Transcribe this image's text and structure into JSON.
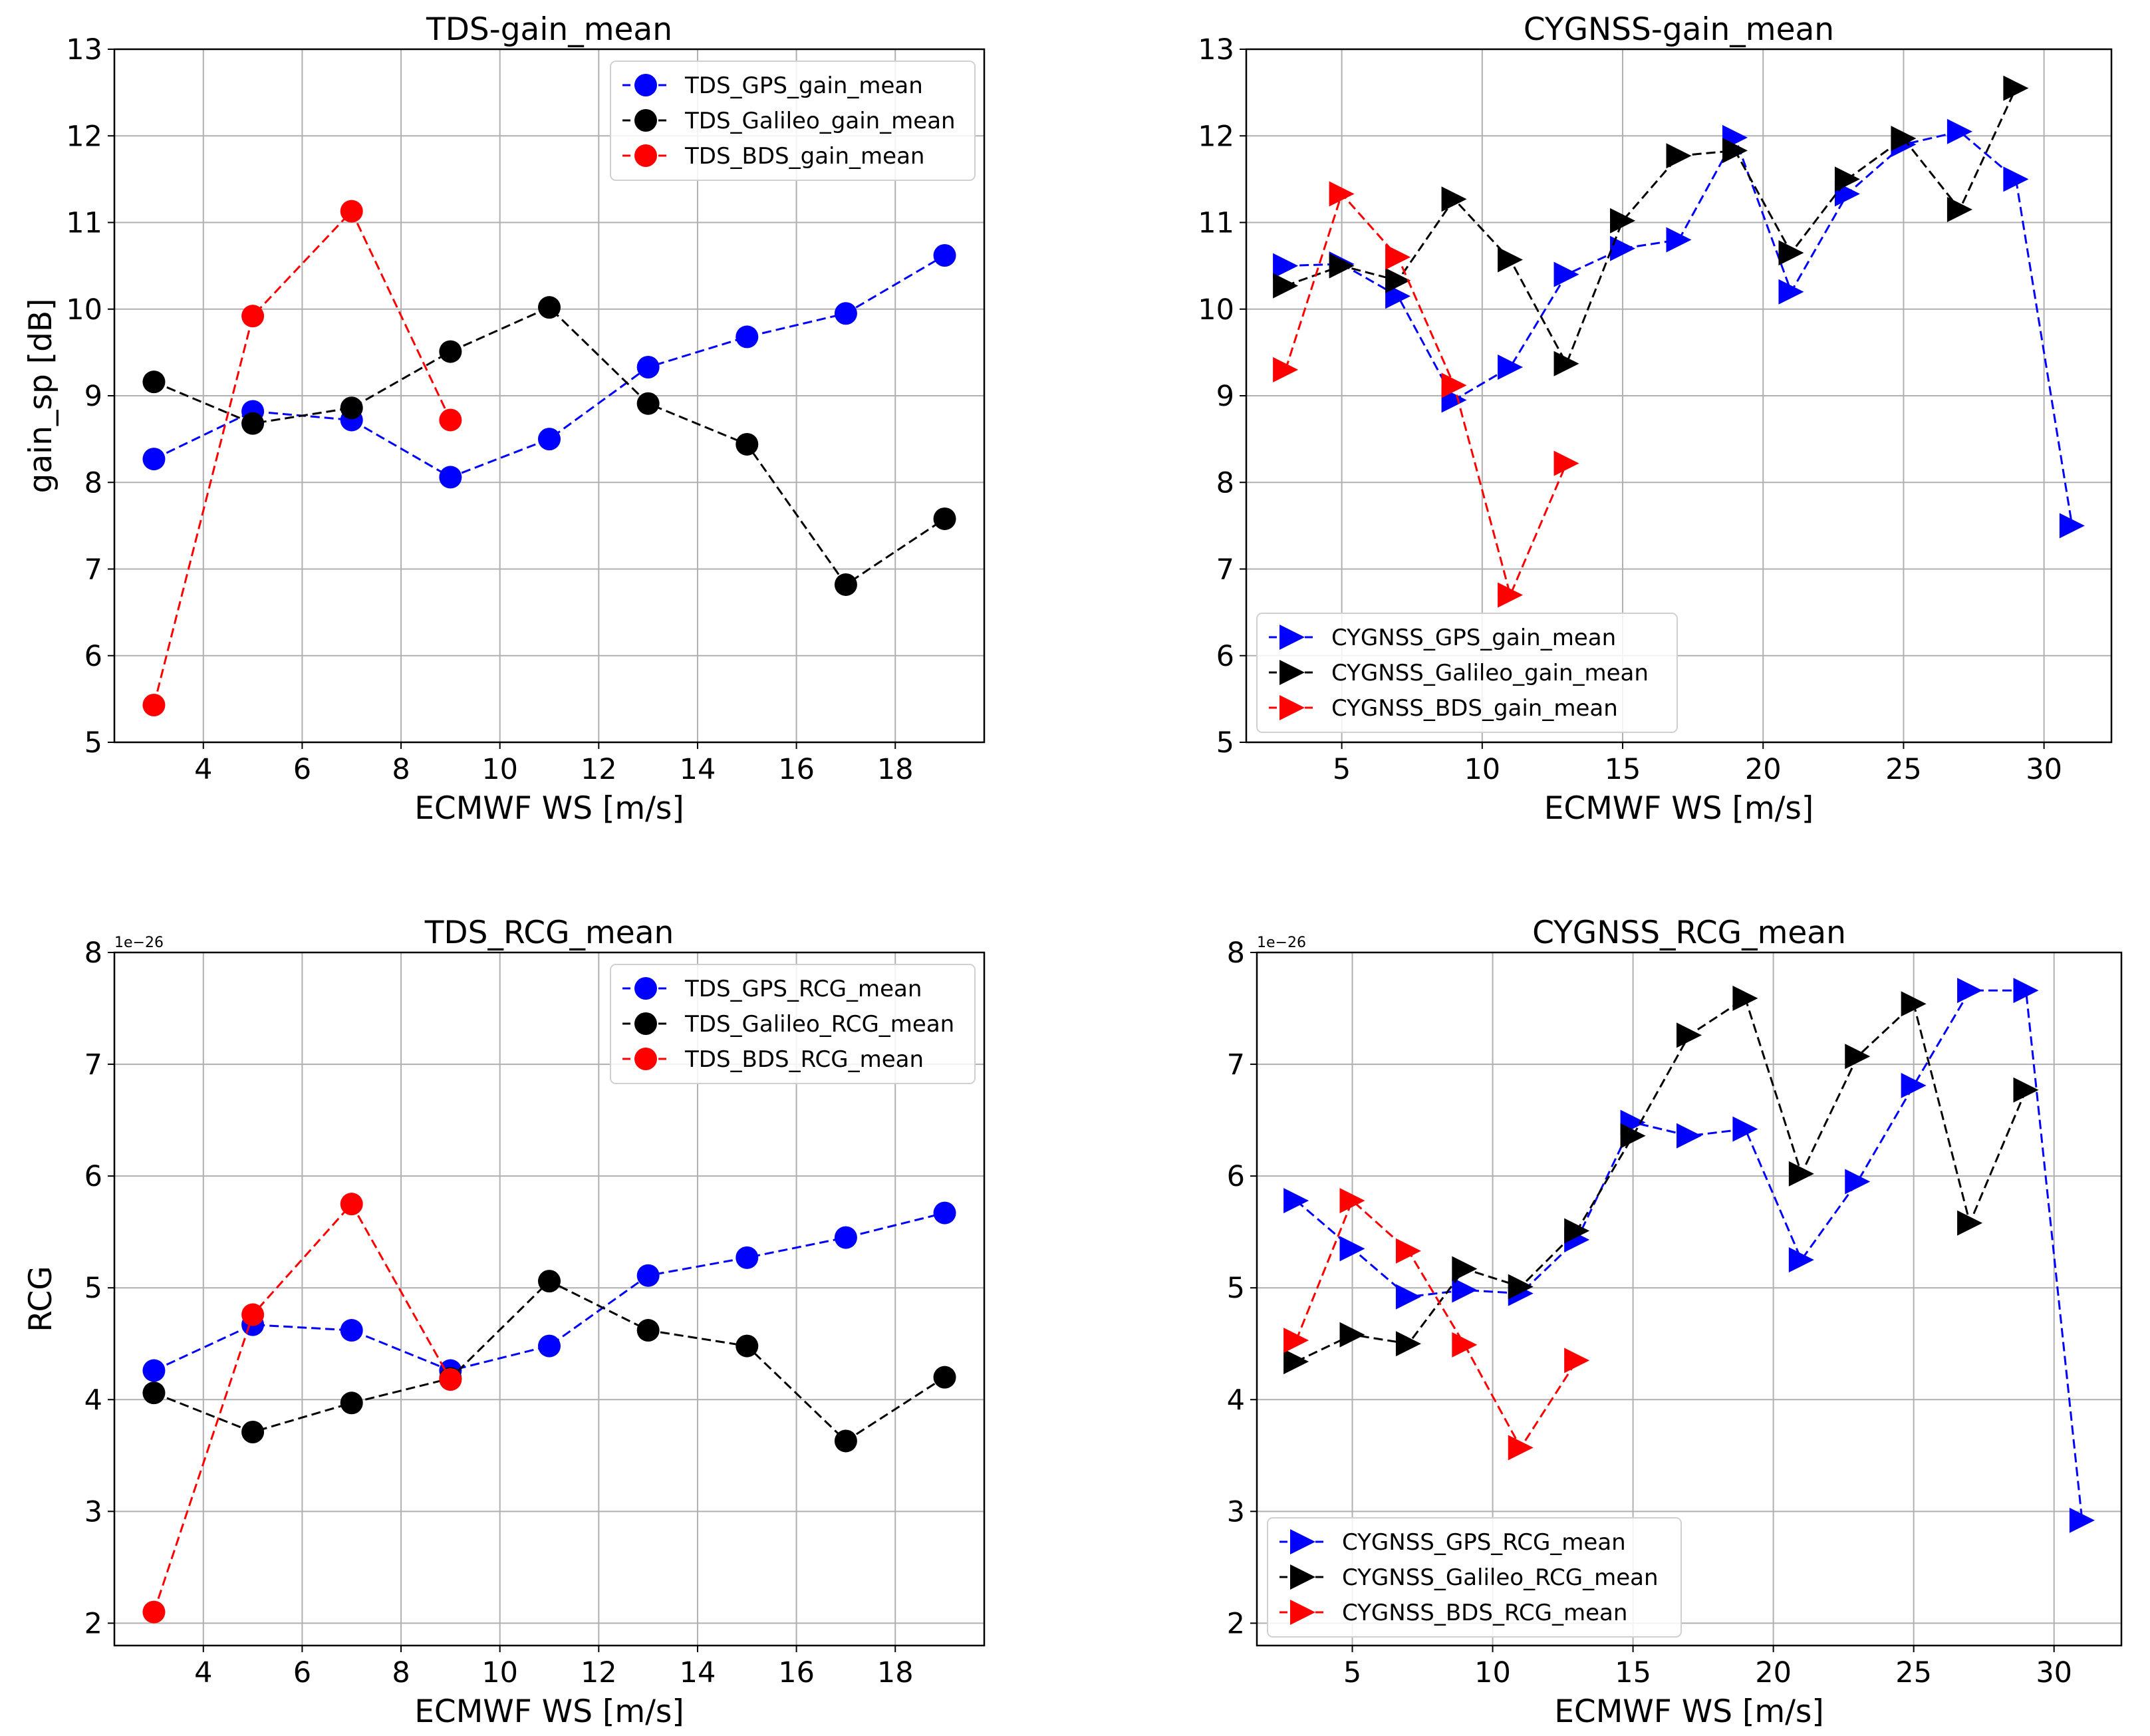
{
  "chart_data": [
    {
      "id": "tds_gain",
      "type": "line",
      "title": "TDS-gain_mean",
      "xlabel": "ECMWF WS [m/s]",
      "ylabel": "gain_sp [dB]",
      "xlim": [
        2.2,
        19.8
      ],
      "ylim": [
        5,
        13
      ],
      "xticks": [
        4,
        6,
        8,
        10,
        12,
        14,
        16,
        18
      ],
      "yticks": [
        5,
        6,
        7,
        8,
        9,
        10,
        11,
        12,
        13
      ],
      "ytick_labels": [
        "5",
        "6",
        "7",
        "8",
        "9",
        "10",
        "11",
        "12",
        "13"
      ],
      "offset_text": "",
      "legend": "top-right",
      "marker": "circle",
      "series": [
        {
          "name": "TDS_GPS_gain_mean",
          "color": "#0000ff",
          "x": [
            3,
            5,
            7,
            9,
            11,
            13,
            15,
            17,
            19
          ],
          "y": [
            8.27,
            8.82,
            8.72,
            8.06,
            8.5,
            9.33,
            9.68,
            9.95,
            10.62
          ]
        },
        {
          "name": "TDS_Galileo_gain_mean",
          "color": "#000000",
          "x": [
            3,
            5,
            7,
            9,
            11,
            13,
            15,
            17,
            19
          ],
          "y": [
            9.16,
            8.68,
            8.86,
            9.51,
            10.02,
            8.91,
            8.44,
            6.82,
            7.58
          ]
        },
        {
          "name": "TDS_BDS_gain_mean",
          "color": "#ff0000",
          "x": [
            3,
            5,
            7,
            9
          ],
          "y": [
            5.43,
            9.92,
            11.13,
            8.72
          ]
        }
      ]
    },
    {
      "id": "cygnss_gain",
      "type": "line",
      "title": "CYGNSS-gain_mean",
      "xlabel": "ECMWF WS [m/s]",
      "ylabel": "",
      "xlim": [
        1.6,
        32.4
      ],
      "ylim": [
        5,
        13
      ],
      "xticks": [
        5,
        10,
        15,
        20,
        25,
        30
      ],
      "yticks": [
        5,
        6,
        7,
        8,
        9,
        10,
        11,
        12,
        13
      ],
      "ytick_labels": [
        "5",
        "6",
        "7",
        "8",
        "9",
        "10",
        "11",
        "12",
        "13"
      ],
      "offset_text": "",
      "legend": "bottom-left",
      "marker": "triangle-right",
      "series": [
        {
          "name": "CYGNSS_GPS_gain_mean",
          "color": "#0000ff",
          "x": [
            3,
            5,
            7,
            9,
            11,
            13,
            15,
            17,
            19,
            21,
            23,
            25,
            27,
            29,
            31
          ],
          "y": [
            10.5,
            10.52,
            10.15,
            8.95,
            9.33,
            10.4,
            10.7,
            10.8,
            11.98,
            10.2,
            11.33,
            11.9,
            12.05,
            11.5,
            7.5
          ]
        },
        {
          "name": "CYGNSS_Galileo_gain_mean",
          "color": "#000000",
          "x": [
            3,
            5,
            7,
            9,
            11,
            13,
            15,
            17,
            19,
            21,
            23,
            25,
            27,
            29
          ],
          "y": [
            10.27,
            10.5,
            10.33,
            11.27,
            10.57,
            9.37,
            11.02,
            11.77,
            11.83,
            10.65,
            11.5,
            11.97,
            11.15,
            12.55
          ]
        },
        {
          "name": "CYGNSS_BDS_gain_mean",
          "color": "#ff0000",
          "x": [
            3,
            5,
            7,
            9,
            11,
            13
          ],
          "y": [
            9.3,
            11.33,
            10.6,
            9.12,
            6.7,
            8.22
          ]
        }
      ]
    },
    {
      "id": "tds_rcg",
      "type": "line",
      "title": "TDS_RCG_mean",
      "xlabel": "ECMWF WS [m/s]",
      "ylabel": "RCG",
      "xlim": [
        2.2,
        19.8
      ],
      "ylim": [
        1.8,
        8
      ],
      "xticks": [
        4,
        6,
        8,
        10,
        12,
        14,
        16,
        18
      ],
      "yticks": [
        2,
        3,
        4,
        5,
        6,
        7,
        8
      ],
      "ytick_labels": [
        "2",
        "3",
        "4",
        "5",
        "6",
        "7",
        "8"
      ],
      "offset_text": "1e−26",
      "legend": "top-right",
      "marker": "circle",
      "series": [
        {
          "name": "TDS_GPS_RCG_mean",
          "color": "#0000ff",
          "x": [
            3,
            5,
            7,
            9,
            11,
            13,
            15,
            17,
            19
          ],
          "y": [
            4.26,
            4.67,
            4.62,
            4.26,
            4.48,
            5.11,
            5.27,
            5.45,
            5.67
          ]
        },
        {
          "name": "TDS_Galileo_RCG_mean",
          "color": "#000000",
          "x": [
            3,
            5,
            7,
            9,
            11,
            13,
            15,
            17,
            19
          ],
          "y": [
            4.06,
            3.71,
            3.97,
            4.19,
            5.06,
            4.62,
            4.48,
            3.63,
            4.2
          ]
        },
        {
          "name": "TDS_BDS_RCG_mean",
          "color": "#ff0000",
          "x": [
            3,
            5,
            7,
            9
          ],
          "y": [
            2.1,
            4.76,
            5.75,
            4.18
          ]
        }
      ]
    },
    {
      "id": "cygnss_rcg",
      "type": "line",
      "title": "CYGNSS_RCG_mean",
      "xlabel": "ECMWF WS [m/s]",
      "ylabel": "",
      "xlim": [
        1.6,
        32.4
      ],
      "ylim": [
        1.8,
        8
      ],
      "xticks": [
        5,
        10,
        15,
        20,
        25,
        30
      ],
      "yticks": [
        2,
        3,
        4,
        5,
        6,
        7,
        8
      ],
      "ytick_labels": [
        "2",
        "3",
        "4",
        "5",
        "6",
        "7",
        "8"
      ],
      "offset_text": "1e−26",
      "legend": "bottom-left",
      "marker": "triangle-right",
      "series": [
        {
          "name": "CYGNSS_GPS_RCG_mean",
          "color": "#0000ff",
          "x": [
            3,
            5,
            7,
            9,
            11,
            13,
            15,
            17,
            19,
            21,
            23,
            25,
            27,
            29,
            31
          ],
          "y": [
            5.78,
            5.35,
            4.92,
            4.98,
            4.95,
            5.43,
            6.48,
            6.36,
            6.42,
            5.25,
            5.95,
            6.81,
            7.66,
            7.66,
            2.92
          ]
        },
        {
          "name": "CYGNSS_Galileo_RCG_mean",
          "color": "#000000",
          "x": [
            3,
            5,
            7,
            9,
            11,
            13,
            15,
            17,
            19,
            21,
            23,
            25,
            27,
            29
          ],
          "y": [
            4.34,
            4.58,
            4.5,
            5.17,
            5.01,
            5.51,
            6.36,
            7.26,
            7.59,
            6.02,
            7.07,
            7.54,
            5.58,
            6.77
          ]
        },
        {
          "name": "CYGNSS_BDS_RCG_mean",
          "color": "#ff0000",
          "x": [
            3,
            5,
            7,
            9,
            11,
            13
          ],
          "y": [
            4.53,
            5.78,
            5.33,
            4.49,
            3.57,
            4.35
          ]
        }
      ]
    }
  ]
}
